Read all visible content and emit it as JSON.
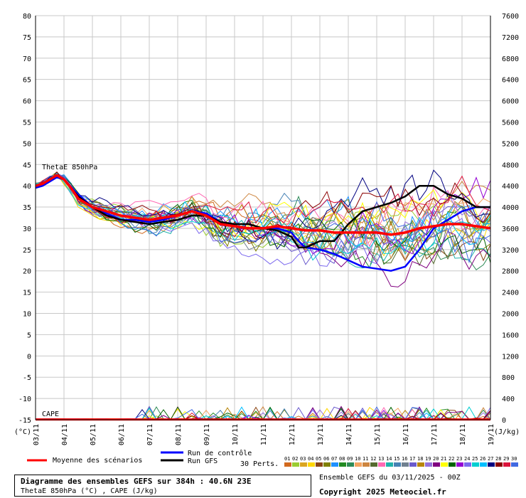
{
  "chart_data": {
    "type": "line",
    "y_left": {
      "ticks": [
        80,
        75,
        70,
        65,
        60,
        55,
        50,
        45,
        40,
        35,
        30,
        25,
        20,
        15,
        10,
        5,
        0,
        -5,
        -10,
        -15
      ],
      "ylim": [
        -15,
        80
      ],
      "unit": "(°C)"
    },
    "y_right": {
      "ticks": [
        7600,
        7200,
        6800,
        6400,
        6000,
        5600,
        5200,
        4800,
        4400,
        4000,
        3600,
        3200,
        2800,
        2400,
        2000,
        1600,
        1200,
        800,
        400,
        0
      ],
      "unit": "(J/kg)"
    },
    "x_ticks": [
      "03/11",
      "04/11",
      "05/11",
      "06/11",
      "07/11",
      "08/11",
      "09/11",
      "10/11",
      "11/11",
      "12/11",
      "13/11",
      "14/11",
      "15/11",
      "16/11",
      "17/11",
      "18/11",
      "19/11"
    ],
    "x_range_hours": [
      0,
      384
    ],
    "series_label": "ThetaE 850hPa",
    "cape_label": "CAPE",
    "mean": {
      "name": "Moyenne des scénarios",
      "color": "#ff0000",
      "x": [
        0,
        6,
        12,
        18,
        24,
        30,
        36,
        48,
        60,
        72,
        84,
        96,
        108,
        120,
        132,
        144,
        156,
        168,
        180,
        192,
        204,
        216,
        228,
        240,
        252,
        264,
        276,
        288,
        300,
        312,
        324,
        336,
        348,
        360,
        372,
        384
      ],
      "y": [
        40,
        40.5,
        41.5,
        42.5,
        41.5,
        39.5,
        37,
        35,
        34,
        33,
        32.5,
        32,
        32.5,
        33,
        34,
        33,
        31,
        30.5,
        30,
        30,
        30.5,
        30,
        29.5,
        29.5,
        29,
        29,
        29,
        29,
        28.5,
        29,
        30,
        30.5,
        31,
        31,
        30.5,
        30
      ]
    },
    "control": {
      "name": "Run de contrôle",
      "color": "#0000ff",
      "x": [
        0,
        6,
        12,
        18,
        24,
        36,
        48,
        60,
        72,
        84,
        96,
        108,
        120,
        132,
        144,
        156,
        168,
        180,
        192,
        204,
        216,
        222,
        228,
        240,
        252,
        264,
        276,
        288,
        300,
        312,
        324,
        336,
        348,
        360,
        372,
        384
      ],
      "y": [
        39.5,
        40,
        41,
        42,
        41.5,
        38,
        35,
        33.5,
        32,
        32,
        31.5,
        32,
        33,
        34,
        33.5,
        31.5,
        30.5,
        30,
        30,
        30,
        29,
        27,
        25.5,
        25,
        24,
        22.5,
        21,
        20.5,
        20,
        21,
        25,
        30,
        32,
        34,
        35,
        35
      ]
    },
    "gfs": {
      "name": "Run GFS",
      "color": "#000000",
      "x": [
        0,
        6,
        12,
        18,
        24,
        36,
        48,
        60,
        72,
        84,
        96,
        108,
        120,
        132,
        144,
        156,
        168,
        180,
        192,
        204,
        216,
        222,
        228,
        240,
        252,
        264,
        276,
        288,
        300,
        312,
        324,
        336,
        348,
        360,
        372,
        384
      ],
      "y": [
        40,
        40.5,
        41.5,
        42.5,
        41.5,
        37.5,
        35,
        33,
        32,
        31.5,
        31,
        31.5,
        32,
        33,
        33,
        31.5,
        31,
        31,
        30,
        29.5,
        28,
        25.5,
        25.5,
        27,
        27,
        31,
        34,
        35,
        36,
        37.5,
        40,
        40,
        38,
        37,
        35,
        35
      ]
    },
    "perturbation_count_label": "30 Perts.",
    "members": [
      "01",
      "02",
      "03",
      "04",
      "05",
      "06",
      "07",
      "08",
      "09",
      "10",
      "11",
      "12",
      "13",
      "14",
      "15",
      "16",
      "17",
      "18",
      "19",
      "20",
      "21",
      "22",
      "23",
      "24",
      "25",
      "26",
      "27",
      "28",
      "29",
      "30"
    ],
    "member_colors": [
      "#d2691e",
      "#9acd32",
      "#daa520",
      "#ffd700",
      "#8b4513",
      "#808000",
      "#1e90ff",
      "#228b22",
      "#2e8b57",
      "#f4a460",
      "#cd853f",
      "#556b2f",
      "#ff69b4",
      "#20b2aa",
      "#4682b4",
      "#708090",
      "#6a5acd",
      "#b8860b",
      "#9370db",
      "#800080",
      "#ffff00",
      "#006400",
      "#9400d3",
      "#7b68ee",
      "#00ced1",
      "#00bfff",
      "#000080",
      "#8b0000",
      "#dc143c",
      "#4169e1"
    ]
  },
  "caption": {
    "line1": "Diagramme des ensembles GEFS sur 384h : 40.6N 23E",
    "line2": "ThetaE 850hPa (°C) , CAPE (J/kg)"
  },
  "meta": {
    "run": "Ensemble GEFS du 03/11/2025 - 00Z",
    "copyright": "Copyright 2025 Meteociel.fr"
  }
}
